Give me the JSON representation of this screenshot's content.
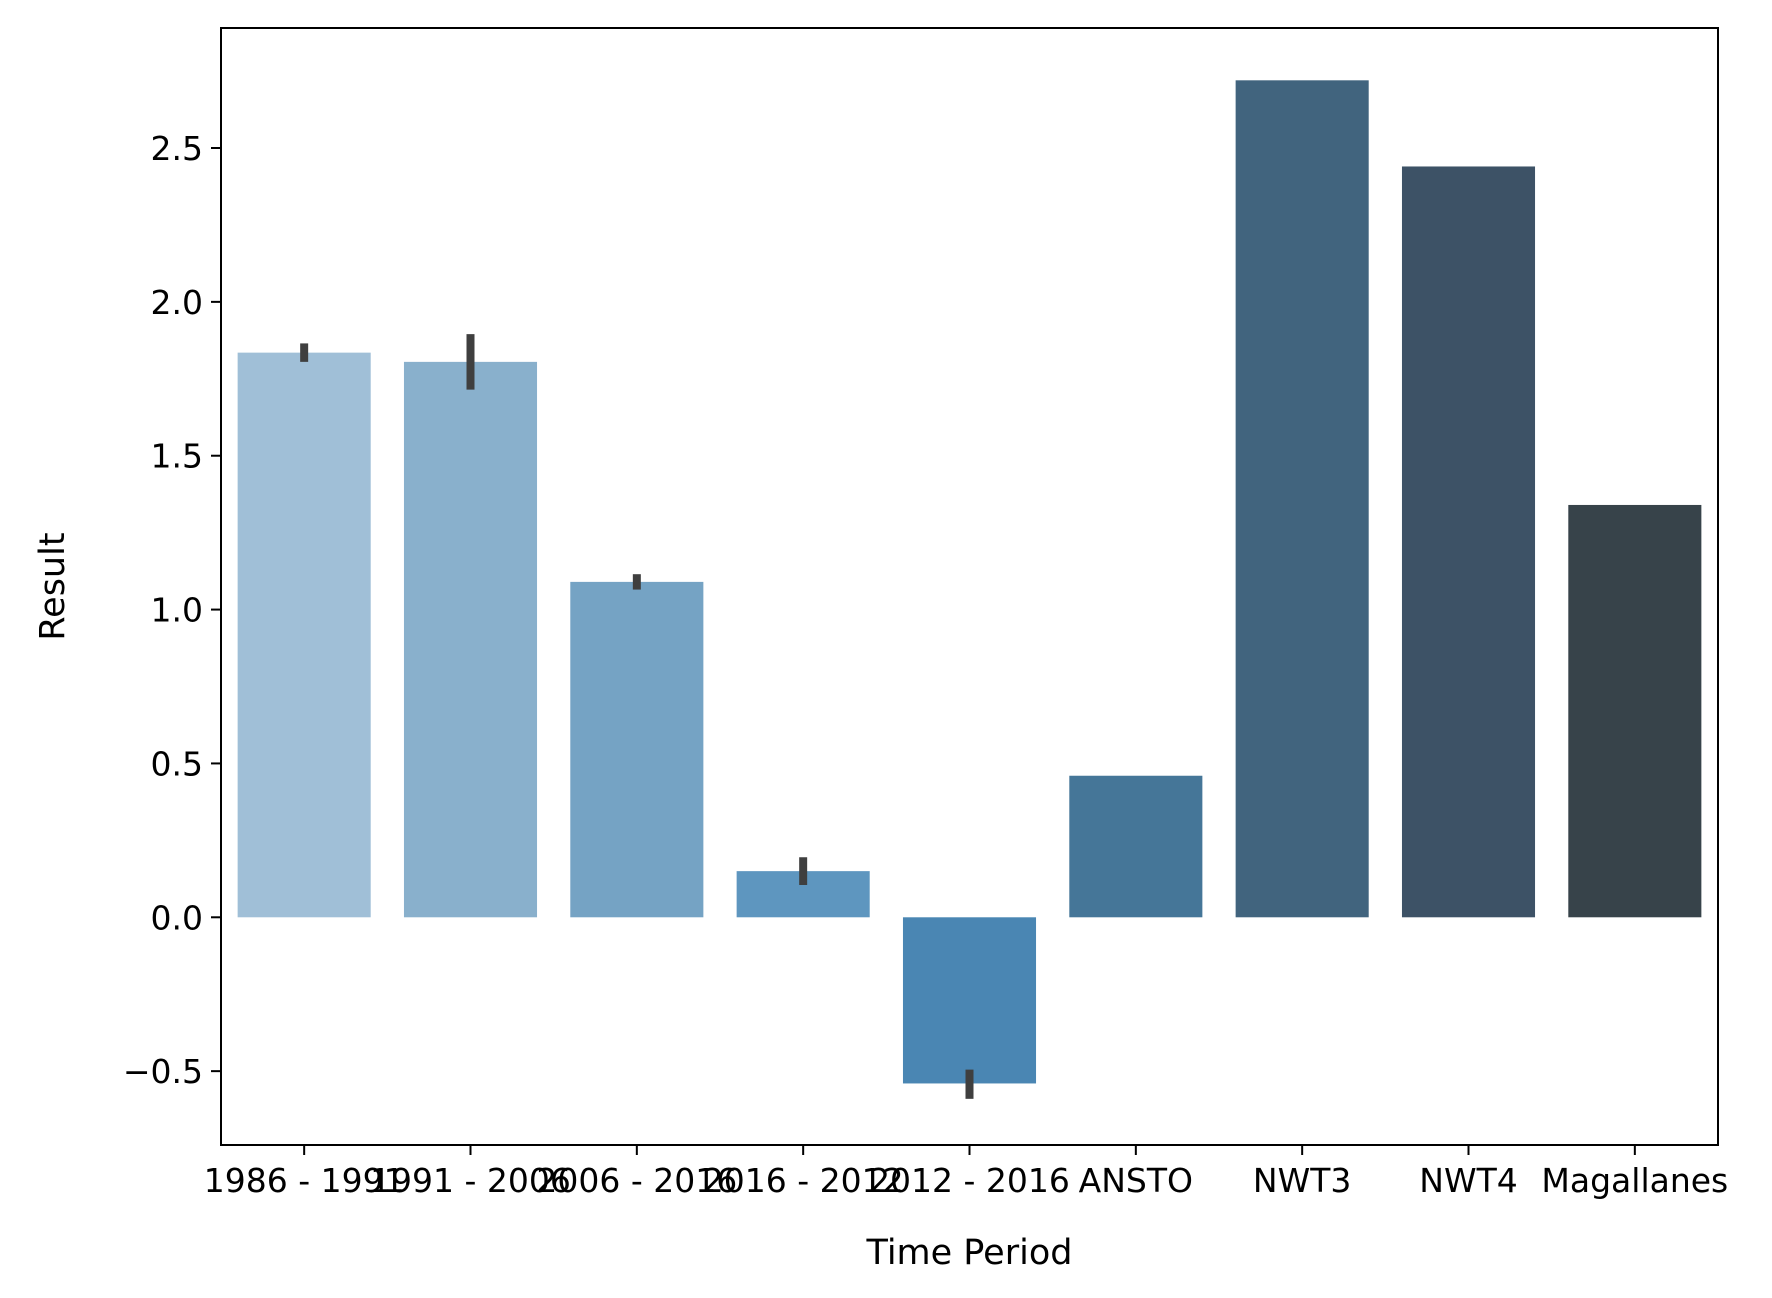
{
  "chart_data": {
    "type": "bar",
    "title": "",
    "xlabel": "Time Period",
    "ylabel": "Result",
    "ylim": [
      -0.74,
      2.89
    ],
    "yticks": [
      -0.5,
      0.0,
      0.5,
      1.0,
      1.5,
      2.0,
      2.5
    ],
    "ytick_labels": [
      "−0.5",
      "0.0",
      "0.5",
      "1.0",
      "1.5",
      "2.0",
      "2.5"
    ],
    "grid": false,
    "legend": "none",
    "categories": [
      "1986 - 1991",
      "1991 - 2006",
      "2006 - 2016",
      "2016 - 2012",
      "2012 - 2016",
      "ANSTO",
      "NWT3",
      "NWT4",
      "Magallanes"
    ],
    "values": [
      1.835,
      1.805,
      1.09,
      0.15,
      -0.54,
      0.46,
      2.72,
      2.44,
      1.34
    ],
    "error_bars": [
      [
        1.805,
        1.865
      ],
      [
        1.715,
        1.895
      ],
      [
        1.065,
        1.115
      ],
      [
        0.105,
        0.195
      ],
      [
        -0.59,
        -0.495
      ],
      null,
      null,
      null,
      null
    ],
    "colors": [
      "#a0bfd7",
      "#89b0cc",
      "#75a3c4",
      "#5e96bf",
      "#4a86b3",
      "#457698",
      "#41647e",
      "#3d5266",
      "#37434a"
    ],
    "errorbar_color": "#3f3f3f"
  }
}
